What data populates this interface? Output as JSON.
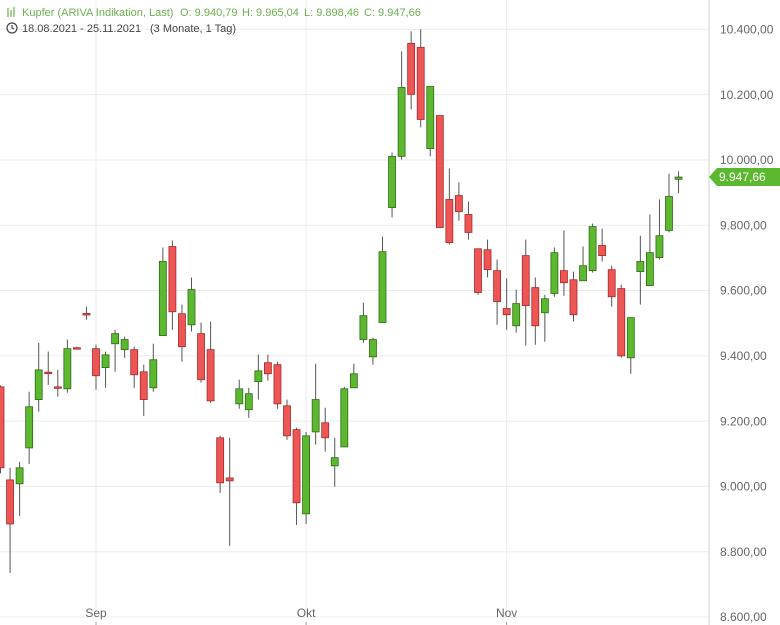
{
  "chart_data": {
    "type": "candlestick",
    "title": "Kupfer (ARIVA Indikation, Last)",
    "ohlc_labels": [
      "O: 9.940,79",
      "H: 9.965,04",
      "L: 9.898,46",
      "C: 9.947,66"
    ],
    "subtitle": "18.08.2021 - 25.11.2021",
    "period": "(3 Monate, 1 Tag)",
    "categories": [
      null,
      null,
      null,
      null,
      null,
      null,
      null,
      null,
      null,
      null,
      "Sep",
      null,
      null,
      null,
      null,
      null,
      null,
      null,
      null,
      null,
      null,
      null,
      null,
      null,
      null,
      null,
      null,
      null,
      null,
      null,
      null,
      null,
      "Okt",
      null,
      null,
      null,
      null,
      null,
      null,
      null,
      null,
      null,
      null,
      null,
      null,
      null,
      null,
      null,
      null,
      null,
      null,
      null,
      null,
      "Nov",
      null,
      null,
      null,
      null,
      null,
      null,
      null,
      null,
      null,
      null,
      null,
      null,
      null,
      null,
      null,
      null,
      null,
      null
    ],
    "series": [
      {
        "name": "Kupfer",
        "up_color": "#5cb82f",
        "down_color": "#ee5555",
        "open": [
          9305,
          9020,
          9008,
          9118,
          9266,
          9350,
          9305,
          9299,
          9425,
          9530,
          9422,
          9364,
          9437,
          9419,
          9419,
          9351,
          9302,
          9462,
          9735,
          9529,
          9495,
          9468,
          9419,
          9149,
          9026,
          9253,
          9235,
          9321,
          9379,
          9373,
          9247,
          9174,
          8916,
          9167,
          9195,
          9063,
          9121,
          9302,
          9450,
          9397,
          9502,
          9854,
          10011,
          10357,
          10345,
          10035,
          10136,
          9879,
          9891,
          9833,
          9728,
          9725,
          9661,
          9545,
          9492,
          9707,
          9609,
          9532,
          9591,
          9661,
          9633,
          9630,
          9661,
          9738,
          9664,
          9606,
          9394,
          9658,
          9615,
          9701,
          9784,
          9940.79
        ],
        "high": [
          9310,
          9057,
          9075,
          9290,
          9440,
          9413,
          9357,
          9450,
          9428,
          9551,
          9434,
          9413,
          9480,
          9459,
          9428,
          9373,
          9437,
          9732,
          9753,
          9557,
          9640,
          9502,
          9505,
          9155,
          9149,
          9327,
          9302,
          9404,
          9404,
          9382,
          9266,
          9180,
          9167,
          9376,
          9241,
          9149,
          9305,
          9376,
          9563,
          9456,
          9765,
          10023,
          10333,
          10394,
          10400,
          10225,
          10136,
          9974,
          9931,
          9873,
          9728,
          9756,
          9695,
          9637,
          9603,
          9756,
          9640,
          9587,
          9732,
          9784,
          9658,
          9735,
          9805,
          9790,
          9676,
          9618,
          9517,
          9768,
          9833,
          9879,
          9958,
          9965.04
        ],
        "low": [
          9040,
          8735,
          8910,
          9069,
          9229,
          9311,
          9275,
          9287,
          9420,
          9511,
          9296,
          9302,
          9351,
          9394,
          9302,
          9216,
          9290,
          9462,
          9480,
          9382,
          9474,
          9318,
          9256,
          8980,
          8818,
          9238,
          9210,
          9266,
          9324,
          9238,
          9143,
          8882,
          8885,
          9128,
          9106,
          8999,
          9121,
          9302,
          9440,
          9373,
          9502,
          9824,
          10001,
          10155,
          10100,
          10011,
          9793,
          9741,
          9814,
          9756,
          9587,
          9640,
          9495,
          9480,
          9471,
          9431,
          9434,
          9443,
          9581,
          9584,
          9505,
          9630,
          9655,
          9689,
          9551,
          9394,
          9345,
          9557,
          9615,
          9695,
          9778,
          9898.46
        ],
        "close": [
          9057,
          8885,
          9057,
          9244,
          9357,
          9348,
          9303,
          9422,
          9423,
          9525,
          9339,
          9403,
          9468,
          9450,
          9342,
          9266,
          9388,
          9689,
          9535,
          9428,
          9603,
          9327,
          9262,
          9011,
          9017,
          9299,
          9284,
          9354,
          9345,
          9253,
          9155,
          8950,
          9155,
          9266,
          9149,
          9088,
          9299,
          9345,
          9523,
          9450,
          9719,
          10011,
          10222,
          10201,
          10124,
          10225,
          9793,
          9747,
          9842,
          9778,
          9594,
          9664,
          9566,
          9526,
          9560,
          9554,
          9492,
          9575,
          9716,
          9624,
          9526,
          9676,
          9796,
          9707,
          9581,
          9400,
          9517,
          9689,
          9716,
          9768,
          9888,
          9947.66
        ]
      }
    ],
    "last_price": {
      "value": 9947.66,
      "label": "9.947,66"
    },
    "ylim": [
      8600,
      10490
    ],
    "yticks": [
      {
        "value": 8600,
        "label": "8.600,00"
      },
      {
        "value": 8800,
        "label": "8.800,00"
      },
      {
        "value": 9000,
        "label": "9.000,00"
      },
      {
        "value": 9200,
        "label": "9.200,00"
      },
      {
        "value": 9400,
        "label": "9.400,00"
      },
      {
        "value": 9600,
        "label": "9.600,00"
      },
      {
        "value": 9800,
        "label": "9.800,00"
      },
      {
        "value": 10000,
        "label": "10.000,00"
      },
      {
        "value": 10200,
        "label": "10.200,00"
      },
      {
        "value": 10400,
        "label": "10.400,00"
      }
    ],
    "grid": true
  }
}
